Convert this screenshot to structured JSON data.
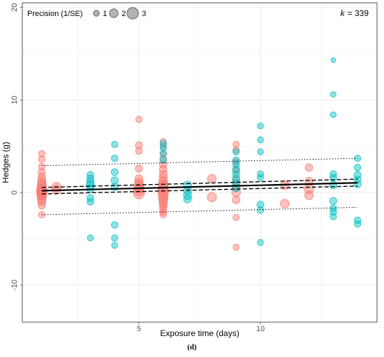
{
  "caption": "(d)",
  "chart_data": {
    "type": "scatter",
    "xlabel": "Exposure time (days)",
    "ylabel": "Hedges (g)",
    "xlim": [
      0.2,
      14.8
    ],
    "ylim": [
      -14,
      20.5
    ],
    "x_ticks": [
      5,
      10
    ],
    "y_ticks": [
      -10,
      0,
      10,
      20
    ],
    "grid": true,
    "legend": {
      "title": "Precision (1/SE)",
      "placement": "top-left",
      "entries": [
        {
          "label": "1",
          "precision": 1
        },
        {
          "label": "2",
          "precision": 2
        },
        {
          "label": "3",
          "precision": 3
        }
      ]
    },
    "annotation": {
      "k_label": "k",
      "k_value": "= 339"
    },
    "colors": {
      "salmon": "#f8766d",
      "teal": "#00bfc4"
    },
    "series": [
      {
        "color": "salmon",
        "points": [
          [
            1,
            4.2,
            1.2
          ],
          [
            1,
            3.6,
            1.3
          ],
          [
            1,
            2.8,
            1.3
          ],
          [
            1,
            2.2,
            1.4
          ],
          [
            1,
            1.7,
            1.6
          ],
          [
            1,
            1.3,
            1.8
          ],
          [
            1,
            1.0,
            2.0
          ],
          [
            1,
            0.7,
            2.2
          ],
          [
            1,
            0.4,
            2.4
          ],
          [
            1,
            0.2,
            2.6
          ],
          [
            1,
            0.0,
            2.6
          ],
          [
            1,
            -0.2,
            2.4
          ],
          [
            1,
            -0.4,
            2.2
          ],
          [
            1,
            -0.7,
            2.0
          ],
          [
            1,
            -1.0,
            1.8
          ],
          [
            1,
            -1.4,
            1.5
          ],
          [
            1,
            -2.4,
            1.2
          ],
          [
            1.6,
            0.6,
            2.2
          ],
          [
            1.6,
            0.3,
            2.0
          ],
          [
            5,
            7.9,
            1.2
          ],
          [
            5,
            5.1,
            1.4
          ],
          [
            5,
            4.5,
            1.3
          ],
          [
            5,
            2.6,
            1.5
          ],
          [
            5,
            1.5,
            1.7
          ],
          [
            5,
            1.1,
            2.0
          ],
          [
            5,
            0.8,
            2.2
          ],
          [
            5,
            0.5,
            2.4
          ],
          [
            5,
            0.2,
            2.6
          ],
          [
            5,
            -0.1,
            2.8
          ],
          [
            6,
            5.5,
            1.2
          ],
          [
            6,
            5.0,
            1.2
          ],
          [
            6,
            4.2,
            1.3
          ],
          [
            6,
            3.6,
            1.4
          ],
          [
            6,
            3.0,
            1.5
          ],
          [
            6,
            2.5,
            1.6
          ],
          [
            6,
            2.0,
            1.7
          ],
          [
            6,
            1.6,
            1.8
          ],
          [
            6,
            1.2,
            2.0
          ],
          [
            6,
            0.9,
            2.2
          ],
          [
            6,
            0.6,
            2.4
          ],
          [
            6,
            0.3,
            2.6
          ],
          [
            6,
            0.0,
            2.6
          ],
          [
            6,
            -0.3,
            2.4
          ],
          [
            6,
            -0.6,
            2.2
          ],
          [
            6,
            -0.9,
            2.0
          ],
          [
            6,
            -1.2,
            1.8
          ],
          [
            6,
            -1.5,
            1.6
          ],
          [
            6,
            -1.8,
            1.4
          ],
          [
            6,
            -2.1,
            1.3
          ],
          [
            6,
            -2.4,
            1.2
          ],
          [
            8,
            1.5,
            2.0
          ],
          [
            8,
            -0.5,
            2.2
          ],
          [
            9,
            5.2,
            1.2
          ],
          [
            9,
            4.6,
            1.2
          ],
          [
            9,
            3.3,
            1.3
          ],
          [
            9,
            2.4,
            1.4
          ],
          [
            9,
            1.4,
            1.6
          ],
          [
            9,
            0.6,
            1.8
          ],
          [
            9,
            0.0,
            2.0
          ],
          [
            9,
            -0.8,
            1.6
          ],
          [
            9,
            -2.7,
            1.2
          ],
          [
            9,
            -5.9,
            1.1
          ],
          [
            11,
            0.8,
            2.0
          ],
          [
            11,
            -1.2,
            2.0
          ],
          [
            12,
            2.7,
            1.6
          ],
          [
            12,
            1.2,
            1.8
          ],
          [
            12,
            0.4,
            2.4
          ],
          [
            12,
            -0.3,
            2.0
          ]
        ]
      },
      {
        "color": "teal",
        "points": [
          [
            3,
            1.9,
            1.4
          ],
          [
            3,
            1.5,
            1.5
          ],
          [
            3,
            1.1,
            1.6
          ],
          [
            3,
            0.8,
            1.7
          ],
          [
            3,
            0.4,
            1.6
          ],
          [
            3,
            -0.6,
            1.4
          ],
          [
            3,
            -1.0,
            1.3
          ],
          [
            3,
            -4.9,
            1.1
          ],
          [
            4,
            5.2,
            1.2
          ],
          [
            4,
            3.7,
            1.3
          ],
          [
            4,
            2.2,
            1.4
          ],
          [
            4,
            1.3,
            1.5
          ],
          [
            4,
            0.6,
            1.5
          ],
          [
            4,
            -3.5,
            1.3
          ],
          [
            4,
            -4.9,
            1.2
          ],
          [
            4,
            -5.7,
            1.1
          ],
          [
            6,
            5.3,
            1.2
          ],
          [
            6,
            4.8,
            1.2
          ],
          [
            6,
            4.2,
            1.2
          ],
          [
            6,
            3.5,
            1.3
          ],
          [
            7,
            0.8,
            1.8
          ],
          [
            7,
            0.2,
            1.8
          ],
          [
            7,
            -0.3,
            1.8
          ],
          [
            7,
            -0.7,
            1.7
          ],
          [
            9,
            4.4,
            1.2
          ],
          [
            9,
            3.5,
            1.3
          ],
          [
            9,
            3.0,
            1.3
          ],
          [
            9,
            2.5,
            1.4
          ],
          [
            9,
            2.0,
            1.4
          ],
          [
            9,
            1.5,
            1.5
          ],
          [
            9,
            1.0,
            1.6
          ],
          [
            9,
            0.5,
            1.6
          ],
          [
            10,
            7.2,
            1.1
          ],
          [
            10,
            5.7,
            1.1
          ],
          [
            10,
            4.4,
            1.1
          ],
          [
            10,
            2.0,
            1.2
          ],
          [
            10,
            1.6,
            1.2
          ],
          [
            10,
            -1.3,
            1.4
          ],
          [
            10,
            -1.9,
            1.3
          ],
          [
            10,
            -5.4,
            1.1
          ],
          [
            13,
            14.3,
            0.6
          ],
          [
            13,
            10.6,
            0.9
          ],
          [
            13,
            8.4,
            1.0
          ],
          [
            13,
            2.0,
            1.3
          ],
          [
            13,
            1.6,
            1.4
          ],
          [
            13,
            0.8,
            1.5
          ],
          [
            13,
            -0.9,
            1.4
          ],
          [
            13,
            -1.7,
            1.3
          ],
          [
            13,
            -2.1,
            1.3
          ],
          [
            13,
            -2.6,
            1.2
          ],
          [
            14,
            3.7,
            1.2
          ],
          [
            14,
            2.7,
            1.3
          ],
          [
            14,
            1.9,
            1.4
          ],
          [
            14,
            1.4,
            1.5
          ],
          [
            14,
            0.9,
            1.5
          ],
          [
            14,
            -3.0,
            1.3
          ],
          [
            14,
            -3.4,
            1.2
          ]
        ]
      }
    ],
    "regression": {
      "fit": {
        "x": [
          1,
          14
        ],
        "y": [
          0.2,
          1.05
        ]
      },
      "ci_upper": {
        "x": [
          1,
          14
        ],
        "y": [
          0.55,
          1.45
        ]
      },
      "ci_lower": {
        "x": [
          1,
          14
        ],
        "y": [
          -0.15,
          0.7
        ]
      },
      "pi_upper": {
        "x": [
          1,
          14
        ],
        "y": [
          2.9,
          3.7
        ]
      },
      "pi_lower": {
        "x": [
          1,
          14
        ],
        "y": [
          -2.4,
          -1.6
        ]
      }
    }
  }
}
